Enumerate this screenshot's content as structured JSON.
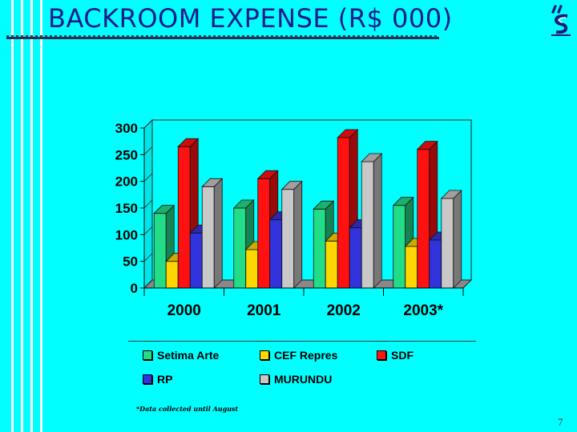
{
  "slide": {
    "title": "BACKROOM EXPENSE (R$ 000)",
    "footnote": "*Data collected until August",
    "page_number": "7"
  },
  "colors": {
    "background": "#00FFFF",
    "title": "#1a1a8a"
  },
  "chart_data": {
    "type": "bar",
    "categories": [
      "2000",
      "2001",
      "2002",
      "2003*"
    ],
    "series": [
      {
        "name": "Setima Arte",
        "color": "#22DD88",
        "values": [
          140,
          150,
          148,
          155
        ]
      },
      {
        "name": "CEF Repres",
        "color": "#FFD700",
        "values": [
          50,
          72,
          88,
          78
        ]
      },
      {
        "name": "SDF",
        "color": "#FF1111",
        "values": [
          265,
          205,
          282,
          260
        ]
      },
      {
        "name": "RP",
        "color": "#3333DD",
        "values": [
          103,
          128,
          113,
          90
        ]
      },
      {
        "name": "MURUNDU",
        "color": "#C8C8C8",
        "values": [
          190,
          185,
          237,
          168
        ]
      }
    ],
    "ylim": [
      0,
      300
    ],
    "yticks": [
      "300",
      "250",
      "200",
      "150",
      "100",
      "50",
      "0"
    ],
    "title": "",
    "xlabel": "",
    "ylabel": "",
    "grid": false,
    "legend_position": "bottom",
    "style": "3d"
  }
}
